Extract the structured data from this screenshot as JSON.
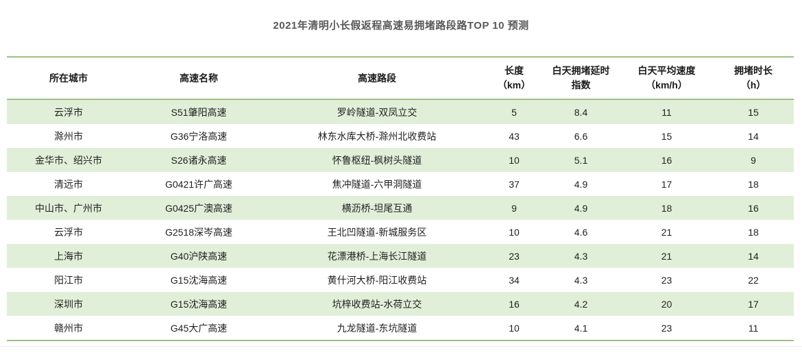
{
  "title": "2021年清明小长假返程高速易拥堵路段路TOP 10 预测",
  "colors": {
    "accent_green_border": "#9cc084",
    "row_stripe_green": "#e1efd8",
    "title_gray": "#595959"
  },
  "chart_data": {
    "type": "table",
    "title": "2021年清明小长假返程高速易拥堵路段路TOP 10 预测",
    "columns": [
      "所在城市",
      "高速名称",
      "高速路段",
      "长度\n（km）",
      "白天拥堵延时\n指数",
      "白天平均速度\n（km/h）",
      "拥堵时长\n（h）"
    ],
    "rows": [
      [
        "云浮市",
        "S51肇阳高速",
        "罗岭隧道-双凤立交",
        "5",
        "8.4",
        "11",
        "15"
      ],
      [
        "滁州市",
        "G36宁洛高速",
        "林东水库大桥-滁州北收费站",
        "43",
        "6.6",
        "15",
        "14"
      ],
      [
        "金华市、绍兴市",
        "S26诸永高速",
        "怀鲁枢纽-枫树头隧道",
        "10",
        "5.1",
        "16",
        "9"
      ],
      [
        "清远市",
        "G0421许广高速",
        "焦冲隧道-六甲洞隧道",
        "37",
        "4.9",
        "17",
        "18"
      ],
      [
        "中山市、广州市",
        "G0425广澳高速",
        "横沥桥-坦尾互通",
        "9",
        "4.9",
        "18",
        "16"
      ],
      [
        "云浮市",
        "G2518深岑高速",
        "王北凹隧道-新城服务区",
        "10",
        "4.6",
        "21",
        "18"
      ],
      [
        "上海市",
        "G40沪陕高速",
        "花漂港桥-上海长江隧道",
        "23",
        "4.3",
        "21",
        "14"
      ],
      [
        "阳江市",
        "G15沈海高速",
        "黄什河大桥-阳江收费站",
        "34",
        "4.3",
        "23",
        "22"
      ],
      [
        "深圳市",
        "G15沈海高速",
        "坑梓收费站-水荷立交",
        "16",
        "4.2",
        "20",
        "17"
      ],
      [
        "赣州市",
        "G45大广高速",
        "九龙隧道-东坑隧道",
        "10",
        "4.1",
        "23",
        "11"
      ]
    ],
    "layout": {
      "row_striping": "odd rows light green",
      "header_bold": true,
      "borders": "green horizontal rules above header, below header, below last row"
    }
  }
}
